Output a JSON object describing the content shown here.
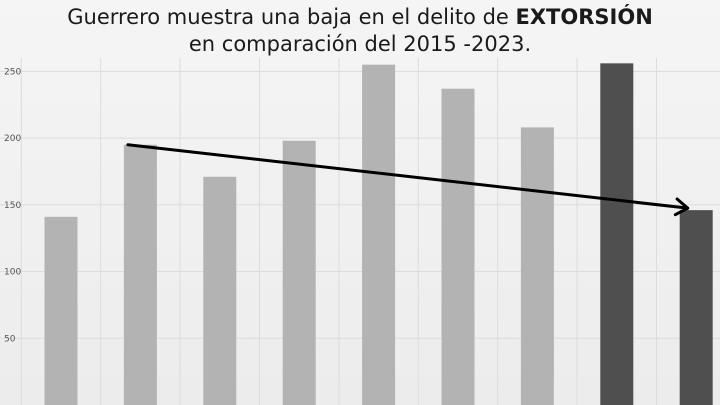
{
  "title": {
    "prefix": "Guerrero muestra una baja en el delito de ",
    "emphasis": "EXTORSIÓN",
    "line2": "en comparación del 2015 -2023."
  },
  "colors": {
    "bar_light": "#b3b3b3",
    "bar_dark": "#4f4f4f",
    "grid": "#dcdcdc",
    "arrow": "#000000"
  },
  "chart_data": {
    "type": "bar",
    "values": [
      141,
      195,
      171,
      198,
      255,
      237,
      208,
      256,
      146
    ],
    "bar_colors": [
      "light",
      "light",
      "light",
      "light",
      "light",
      "light",
      "light",
      "dark",
      "dark"
    ],
    "yticks": [
      50,
      100,
      150,
      200,
      250
    ],
    "ylim": [
      0,
      260
    ],
    "grid": true,
    "trend_arrow": {
      "from_index": 1,
      "from_value": 195,
      "to_index": 8,
      "to_value": 146
    }
  }
}
